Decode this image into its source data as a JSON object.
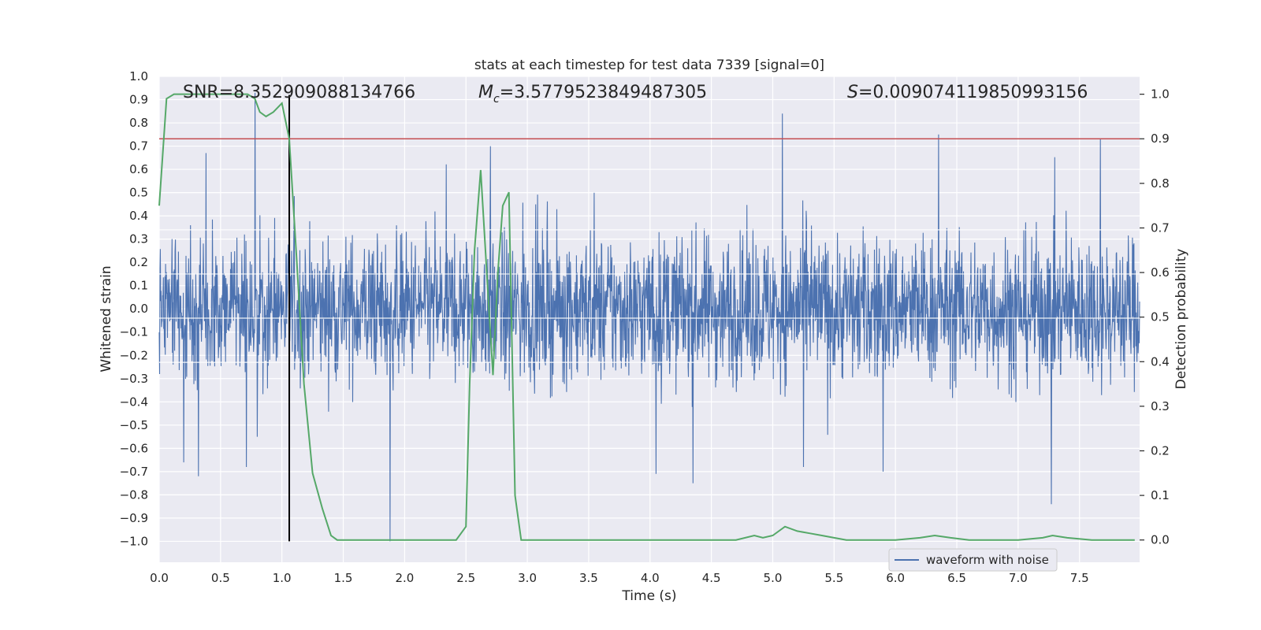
{
  "chart_data": {
    "type": "line",
    "title": "stats at each timestep for test data 7339 [signal=0]",
    "xlabel": "Time (s)",
    "ylabel": "Whitened strain",
    "y2label": "Detection probability",
    "xlim": [
      0.0,
      7.99
    ],
    "ylim": [
      -1.09,
      1.0
    ],
    "y2lim": [
      -0.05,
      1.04
    ],
    "xticks": [
      "0.0",
      "0.5",
      "1.0",
      "1.5",
      "2.0",
      "2.5",
      "3.0",
      "3.5",
      "4.0",
      "4.5",
      "5.0",
      "5.5",
      "6.0",
      "6.5",
      "7.0",
      "7.5"
    ],
    "yticks": [
      "1.0",
      "0.9",
      "0.8",
      "0.7",
      "0.6",
      "0.5",
      "0.4",
      "0.3",
      "0.2",
      "0.1",
      "0.0",
      "−0.1",
      "−0.2",
      "−0.3",
      "−0.4",
      "−0.5",
      "−0.6",
      "−0.7",
      "−0.8",
      "−0.9",
      "−1.0"
    ],
    "y2ticks": [
      "1.0",
      "0.9",
      "0.8",
      "0.7",
      "0.6",
      "0.5",
      "0.4",
      "0.3",
      "0.2",
      "0.1",
      "0.0"
    ],
    "annotations": {
      "snr": "SNR=8.352909088134766",
      "mc_symbol": "M",
      "mc_sub": "c",
      "mc_value": "=3.5779523849487305",
      "s_symbol": "S",
      "s_value": "=0.009074119850993156"
    },
    "legend": {
      "entries": [
        "waveform with noise"
      ],
      "location": "lower-right"
    },
    "series": [
      {
        "name": "waveform with noise",
        "color": "#4c72b0",
        "axis": "left",
        "envelope_typical": 0.4,
        "spikes": [
          {
            "t": 0.78,
            "y": 0.93
          },
          {
            "t": 0.8,
            "y": -0.55
          },
          {
            "t": 0.38,
            "y": 0.67
          },
          {
            "t": 0.32,
            "y": -0.72
          },
          {
            "t": 0.71,
            "y": -0.68
          },
          {
            "t": 1.88,
            "y": -1.0
          },
          {
            "t": 2.7,
            "y": 0.7
          },
          {
            "t": 5.08,
            "y": 0.84
          },
          {
            "t": 6.35,
            "y": 0.75
          },
          {
            "t": 7.67,
            "y": 0.73
          },
          {
            "t": 7.27,
            "y": -0.84
          },
          {
            "t": 4.35,
            "y": -0.75
          },
          {
            "t": 4.05,
            "y": -0.71
          },
          {
            "t": 5.25,
            "y": -0.68
          },
          {
            "t": 5.9,
            "y": -0.7
          }
        ]
      },
      {
        "name": "detection probability",
        "color": "#55a868",
        "axis": "right",
        "x": [
          0.0,
          0.06,
          0.12,
          0.2,
          0.3,
          0.45,
          0.6,
          0.72,
          0.78,
          0.82,
          0.87,
          0.93,
          1.0,
          1.06,
          1.12,
          1.18,
          1.25,
          1.33,
          1.4,
          1.45,
          1.6,
          1.8,
          2.0,
          2.2,
          2.3,
          2.42,
          2.5,
          2.53,
          2.57,
          2.62,
          2.68,
          2.72,
          2.76,
          2.8,
          2.85,
          2.9,
          2.95,
          3.0,
          3.1,
          3.2,
          3.3,
          3.5,
          3.8,
          4.1,
          4.4,
          4.7,
          4.85,
          4.92,
          5.0,
          5.1,
          5.2,
          5.3,
          5.4,
          5.5,
          5.6,
          6.0,
          6.2,
          6.32,
          6.45,
          6.6,
          7.0,
          7.2,
          7.28,
          7.4,
          7.6,
          7.8,
          7.95
        ],
        "values": [
          0.75,
          0.99,
          1.0,
          1.0,
          1.0,
          1.0,
          1.0,
          1.0,
          0.99,
          0.96,
          0.95,
          0.96,
          0.98,
          0.9,
          0.63,
          0.35,
          0.15,
          0.07,
          0.01,
          0.0,
          0.0,
          0.0,
          0.0,
          0.0,
          0.0,
          0.0,
          0.03,
          0.35,
          0.65,
          0.83,
          0.55,
          0.37,
          0.6,
          0.75,
          0.78,
          0.1,
          0.0,
          0.0,
          0.0,
          0.0,
          0.0,
          0.0,
          0.0,
          0.0,
          0.0,
          0.0,
          0.01,
          0.005,
          0.01,
          0.03,
          0.02,
          0.015,
          0.01,
          0.005,
          0.0,
          0.0,
          0.005,
          0.01,
          0.005,
          0.0,
          0.0,
          0.005,
          0.01,
          0.005,
          0.0,
          0.0,
          0.0
        ]
      },
      {
        "name": "threshold",
        "color": "#c44e52",
        "axis": "right",
        "value": 0.9
      },
      {
        "name": "marker",
        "color": "#000000",
        "axis": "left",
        "t": 1.06,
        "y_range": [
          -1.0,
          0.92
        ]
      }
    ]
  }
}
